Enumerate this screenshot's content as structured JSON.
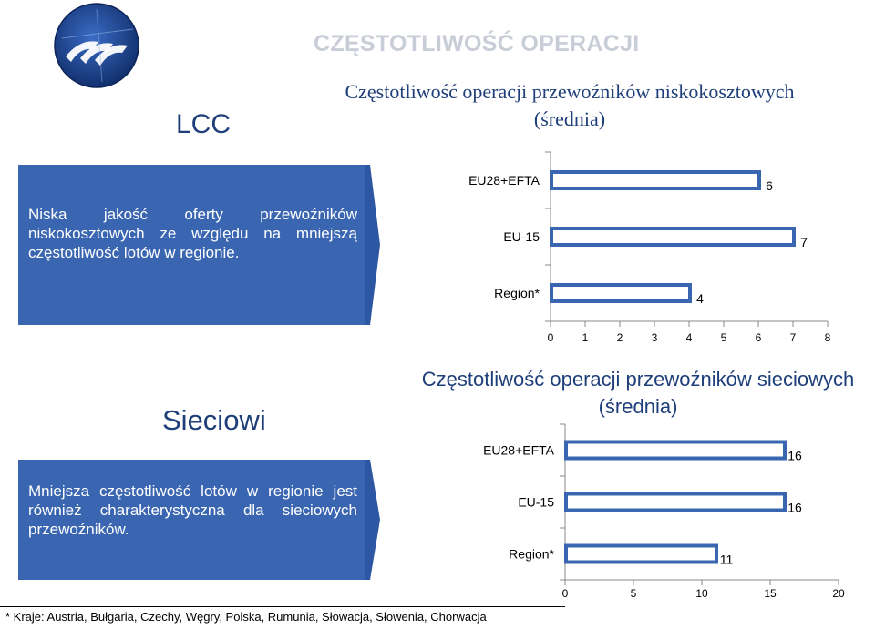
{
  "header": {
    "title": "CZĘSTOTLIWOŚĆ OPERACJI"
  },
  "sections": {
    "lcc": {
      "heading": "LCC",
      "description": "Niska jakość oferty przewoźników niskokosztowych ze względu na mniejszą częstotliwość lotów w regionie."
    },
    "network": {
      "heading": "Sieciowi",
      "description": "Mniejsza częstotliwość lotów w regionie jest również charakterystyczna dla sieciowych przewoźników."
    }
  },
  "footnote": "* Kraje: Austria, Bułgaria, Czechy, Węgry, Polska, Rumunia, Słowacja, Słowenia, Chorwacja",
  "colors": {
    "accent": "#1f3f7a",
    "box": "#3a65b0",
    "bar_fill": "#ffffff",
    "bar_border": "#3a65b0"
  },
  "chart_data": [
    {
      "type": "bar",
      "orientation": "horizontal",
      "title_line1": "Częstotliwość operacji przewoźników niskokosztowych",
      "title_line2": "(średnia)",
      "categories": [
        "EU28+EFTA",
        "EU-15",
        "Region*"
      ],
      "values": [
        6,
        7,
        4
      ],
      "xlim": [
        0,
        8
      ],
      "xticks": [
        0,
        1,
        2,
        3,
        4,
        5,
        6,
        7,
        8
      ],
      "xticks_labels": [
        "0",
        "1",
        "2",
        "3",
        "4",
        "5",
        "6",
        "7",
        "8"
      ],
      "grid": false
    },
    {
      "type": "bar",
      "orientation": "horizontal",
      "title_line1": "Częstotliwość operacji przewoźników sieciowych",
      "title_line2": "(średnia)",
      "categories": [
        "EU28+EFTA",
        "EU-15",
        "Region*"
      ],
      "values": [
        16,
        16,
        11
      ],
      "xlim": [
        0,
        20
      ],
      "xticks": [
        0,
        5,
        10,
        15,
        20
      ],
      "xticks_labels": [
        "0",
        "5",
        "10",
        "15",
        "20"
      ],
      "grid": false
    }
  ]
}
